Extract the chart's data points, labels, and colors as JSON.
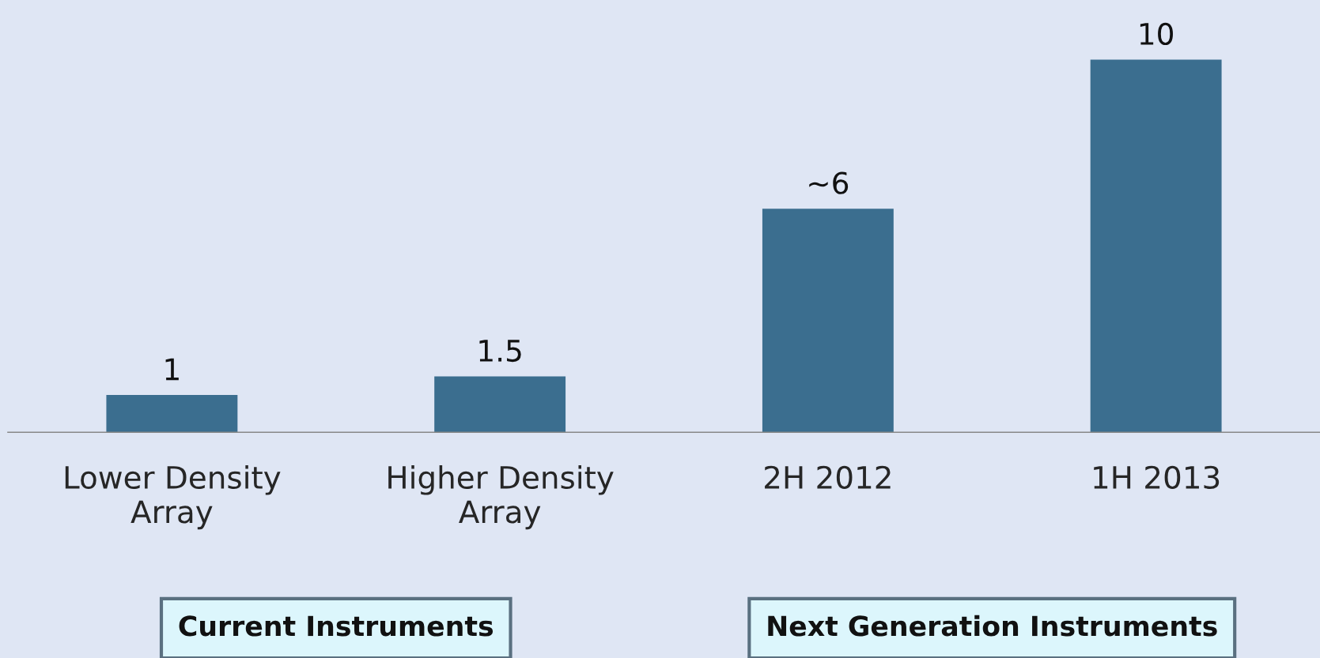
{
  "chart_data": {
    "type": "bar",
    "categories": [
      "Lower Density\nArray",
      "Higher Density\nArray",
      "2H 2012",
      "1H 2013"
    ],
    "values": [
      1,
      1.5,
      6,
      10
    ],
    "value_labels": [
      "1",
      "1.5",
      "~6",
      "10"
    ],
    "color": "#3b6e8f",
    "ylim": [
      0,
      11.6
    ],
    "tick_labels": "x",
    "grid": false,
    "legend": false,
    "annotations": [
      "Current Instruments",
      "Next Generation Instruments"
    ]
  }
}
